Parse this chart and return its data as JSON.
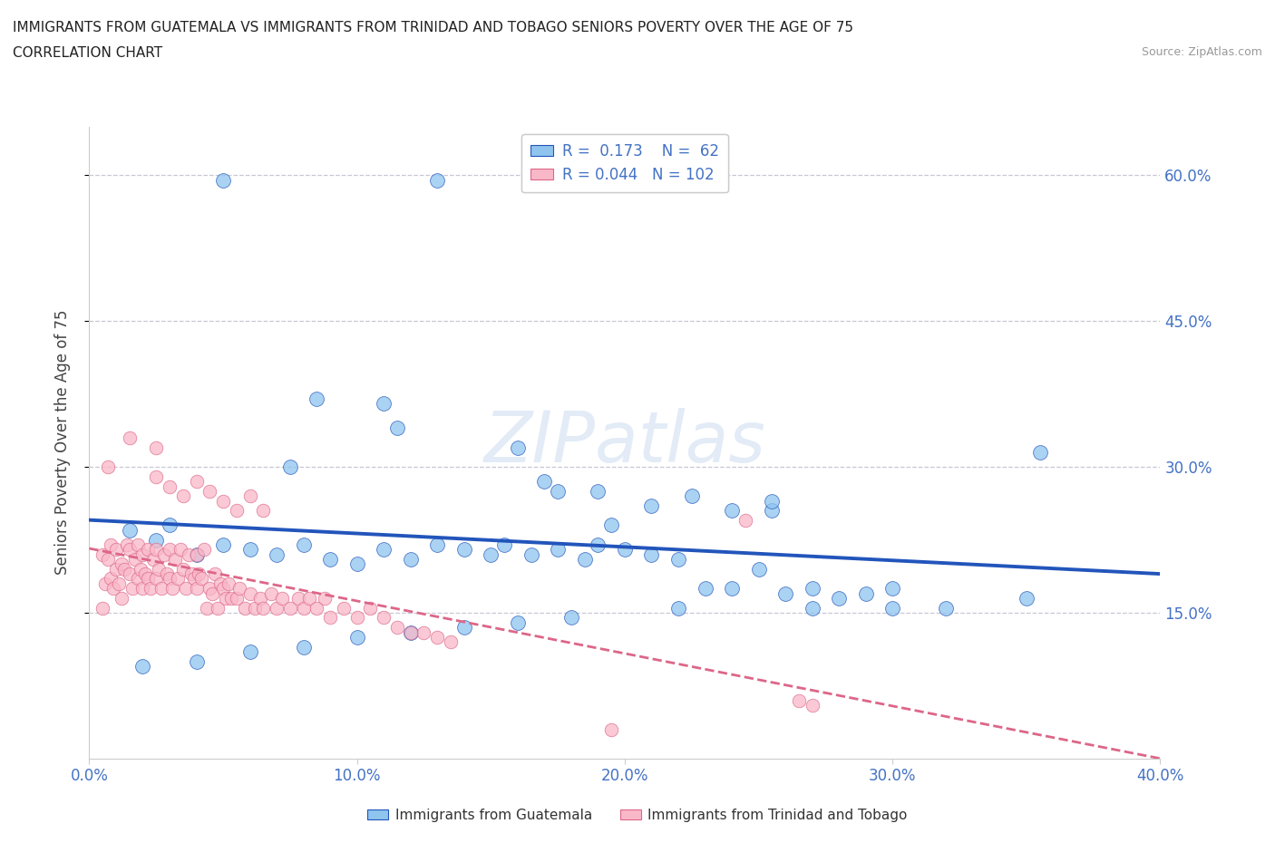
{
  "title_line1": "IMMIGRANTS FROM GUATEMALA VS IMMIGRANTS FROM TRINIDAD AND TOBAGO SENIORS POVERTY OVER THE AGE OF 75",
  "title_line2": "CORRELATION CHART",
  "source_text": "Source: ZipAtlas.com",
  "ylabel": "Seniors Poverty Over the Age of 75",
  "xlim": [
    0.0,
    0.4
  ],
  "ylim": [
    0.0,
    0.65
  ],
  "xticks": [
    0.0,
    0.1,
    0.2,
    0.3,
    0.4
  ],
  "xtick_labels": [
    "0.0%",
    "10.0%",
    "20.0%",
    "30.0%",
    "40.0%"
  ],
  "ytick_positions": [
    0.15,
    0.3,
    0.45,
    0.6
  ],
  "ytick_labels": [
    "15.0%",
    "30.0%",
    "45.0%",
    "60.0%"
  ],
  "color_guatemala": "#8EC4EE",
  "color_tt": "#F9B8C8",
  "trendline_guatemala_color": "#2255BB",
  "trendline_tt_color": "#DD6688",
  "R_guatemala": 0.173,
  "N_guatemala": 62,
  "R_tt": 0.044,
  "N_tt": 102,
  "legend_label_guatemala": "Immigrants from Guatemala",
  "legend_label_tt": "Immigrants from Trinidad and Tobago",
  "watermark": "ZIPatlas",
  "watermark_color": "#D0DFF0",
  "background_color": "#FFFFFF",
  "guatemala_x": [
    0.13,
    0.05,
    0.085,
    0.11,
    0.115,
    0.075,
    0.16,
    0.17,
    0.175,
    0.19,
    0.21,
    0.225,
    0.24,
    0.015,
    0.025,
    0.03,
    0.04,
    0.05,
    0.06,
    0.07,
    0.08,
    0.09,
    0.1,
    0.11,
    0.12,
    0.13,
    0.14,
    0.15,
    0.155,
    0.165,
    0.175,
    0.185,
    0.19,
    0.2,
    0.21,
    0.22,
    0.23,
    0.24,
    0.25,
    0.26,
    0.27,
    0.28,
    0.29,
    0.3,
    0.32,
    0.27,
    0.35,
    0.3,
    0.22,
    0.18,
    0.16,
    0.14,
    0.12,
    0.1,
    0.08,
    0.06,
    0.04,
    0.02,
    0.355,
    0.255,
    0.195,
    0.255
  ],
  "guatemala_y": [
    0.595,
    0.595,
    0.37,
    0.365,
    0.34,
    0.3,
    0.32,
    0.285,
    0.275,
    0.275,
    0.26,
    0.27,
    0.255,
    0.235,
    0.225,
    0.24,
    0.21,
    0.22,
    0.215,
    0.21,
    0.22,
    0.205,
    0.2,
    0.215,
    0.205,
    0.22,
    0.215,
    0.21,
    0.22,
    0.21,
    0.215,
    0.205,
    0.22,
    0.215,
    0.21,
    0.205,
    0.175,
    0.175,
    0.195,
    0.17,
    0.175,
    0.165,
    0.17,
    0.155,
    0.155,
    0.155,
    0.165,
    0.175,
    0.155,
    0.145,
    0.14,
    0.135,
    0.13,
    0.125,
    0.115,
    0.11,
    0.1,
    0.095,
    0.315,
    0.255,
    0.24,
    0.265
  ],
  "tt_x": [
    0.005,
    0.005,
    0.006,
    0.007,
    0.008,
    0.008,
    0.009,
    0.01,
    0.01,
    0.011,
    0.012,
    0.012,
    0.013,
    0.014,
    0.015,
    0.015,
    0.016,
    0.017,
    0.018,
    0.018,
    0.019,
    0.02,
    0.02,
    0.021,
    0.022,
    0.022,
    0.023,
    0.024,
    0.025,
    0.025,
    0.026,
    0.027,
    0.028,
    0.029,
    0.03,
    0.03,
    0.031,
    0.032,
    0.033,
    0.034,
    0.035,
    0.036,
    0.037,
    0.038,
    0.039,
    0.04,
    0.04,
    0.041,
    0.042,
    0.043,
    0.044,
    0.045,
    0.046,
    0.047,
    0.048,
    0.049,
    0.05,
    0.051,
    0.052,
    0.053,
    0.055,
    0.056,
    0.058,
    0.06,
    0.062,
    0.064,
    0.065,
    0.068,
    0.07,
    0.072,
    0.075,
    0.078,
    0.08,
    0.082,
    0.085,
    0.088,
    0.09,
    0.095,
    0.1,
    0.105,
    0.11,
    0.115,
    0.12,
    0.125,
    0.13,
    0.135,
    0.025,
    0.03,
    0.035,
    0.04,
    0.045,
    0.05,
    0.055,
    0.06,
    0.065,
    0.007,
    0.015,
    0.025,
    0.245,
    0.195,
    0.265,
    0.27
  ],
  "tt_y": [
    0.155,
    0.21,
    0.18,
    0.205,
    0.185,
    0.22,
    0.175,
    0.195,
    0.215,
    0.18,
    0.165,
    0.2,
    0.195,
    0.22,
    0.19,
    0.215,
    0.175,
    0.205,
    0.185,
    0.22,
    0.195,
    0.175,
    0.21,
    0.19,
    0.185,
    0.215,
    0.175,
    0.205,
    0.185,
    0.215,
    0.195,
    0.175,
    0.21,
    0.19,
    0.185,
    0.215,
    0.175,
    0.205,
    0.185,
    0.215,
    0.195,
    0.175,
    0.21,
    0.19,
    0.185,
    0.175,
    0.21,
    0.19,
    0.185,
    0.215,
    0.155,
    0.175,
    0.17,
    0.19,
    0.155,
    0.18,
    0.175,
    0.165,
    0.18,
    0.165,
    0.165,
    0.175,
    0.155,
    0.17,
    0.155,
    0.165,
    0.155,
    0.17,
    0.155,
    0.165,
    0.155,
    0.165,
    0.155,
    0.165,
    0.155,
    0.165,
    0.145,
    0.155,
    0.145,
    0.155,
    0.145,
    0.135,
    0.13,
    0.13,
    0.125,
    0.12,
    0.29,
    0.28,
    0.27,
    0.285,
    0.275,
    0.265,
    0.255,
    0.27,
    0.255,
    0.3,
    0.33,
    0.32,
    0.245,
    0.03,
    0.06,
    0.055
  ]
}
